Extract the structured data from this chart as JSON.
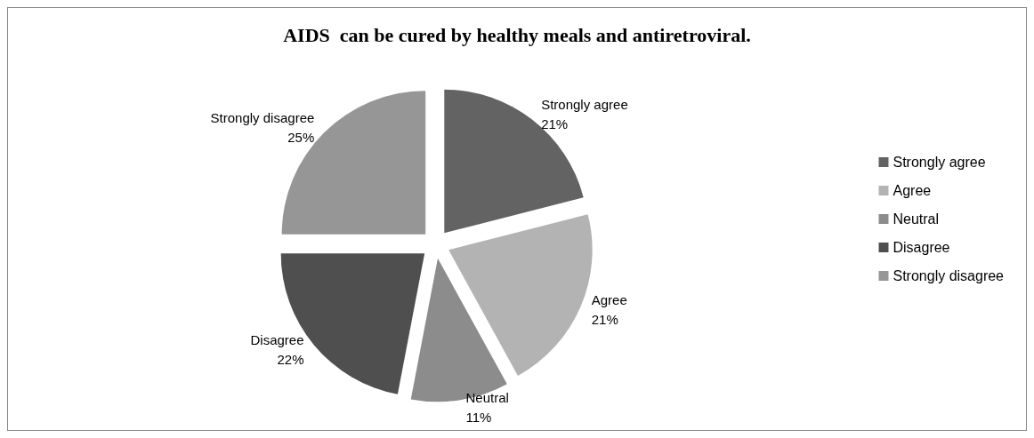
{
  "chart_data": {
    "type": "pie",
    "title": "AIDS  can be cured by healthy meals and antiretroviral.",
    "categories": [
      "Strongly agree",
      "Agree",
      "Neutral",
      "Disagree",
      "Strongly disagree"
    ],
    "values": [
      21,
      21,
      11,
      22,
      25
    ],
    "value_labels": [
      "21%",
      "21%",
      "11%",
      "22%",
      "25%"
    ],
    "colors": [
      "#636363",
      "#b3b3b3",
      "#8c8c8c",
      "#4f4f4f",
      "#969696"
    ],
    "legend": "right"
  }
}
